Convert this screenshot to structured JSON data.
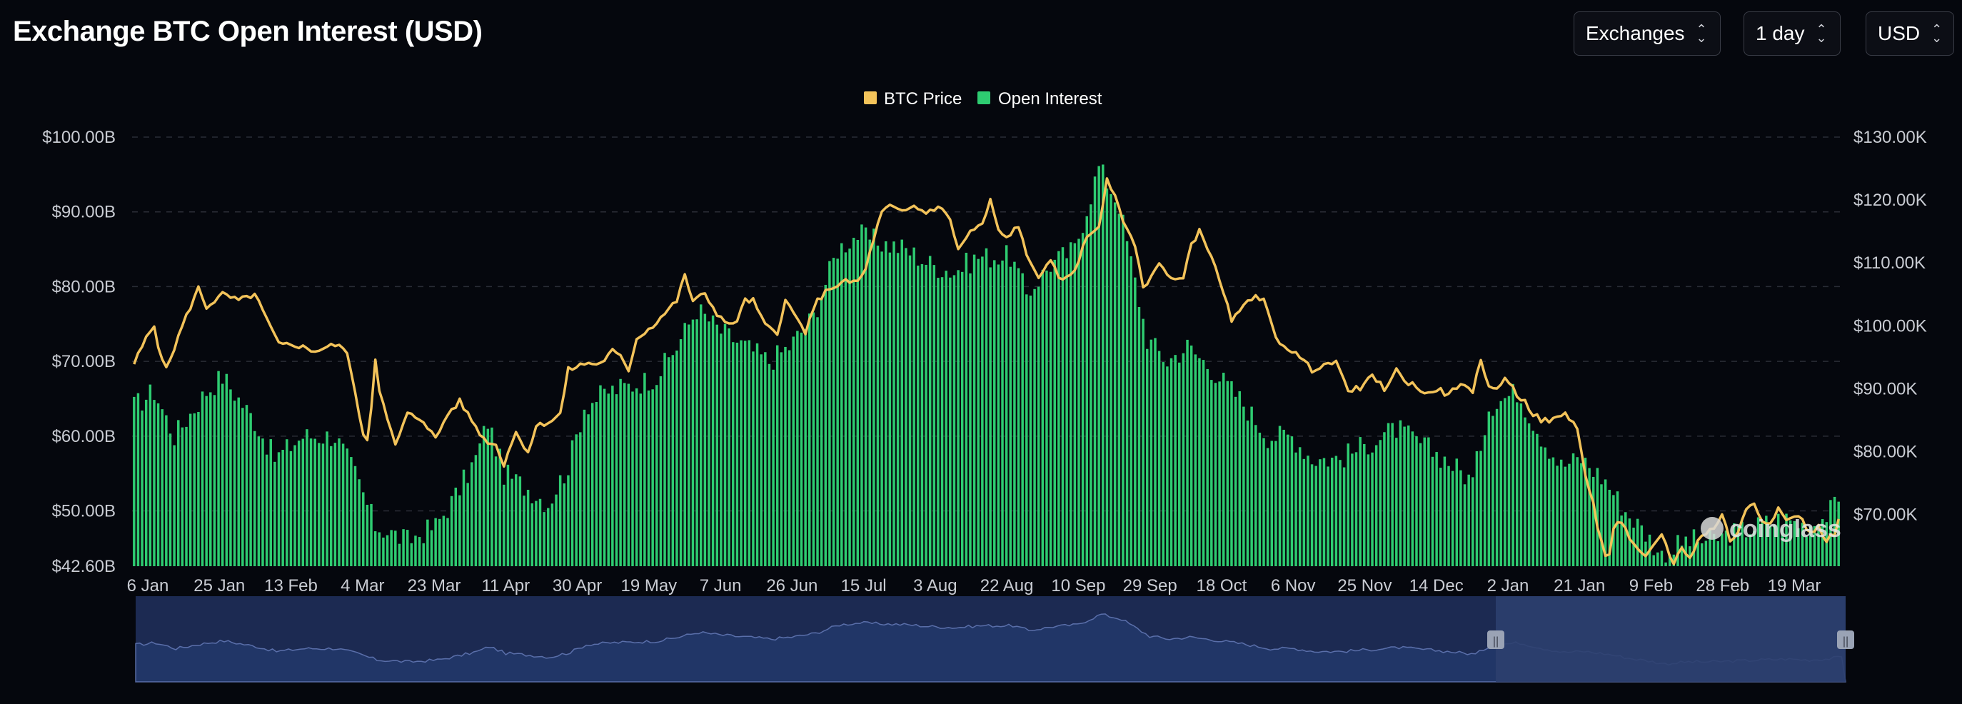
{
  "title": "Exchange BTC Open Interest (USD)",
  "controls": {
    "exchange_label": "Exchanges",
    "interval_label": "1 day",
    "currency_label": "USD"
  },
  "colors": {
    "price": "#f3c35a",
    "open_interest": "#2ecc71",
    "grid": "#2a2d36",
    "navigator": "#1c2a52",
    "navigator_selected": "#2c3f6e"
  },
  "watermark": "coinglass",
  "chart_data": {
    "type": "bar+line",
    "legend": [
      "BTC Price",
      "Open Interest"
    ],
    "y_left": {
      "ticks": [
        "$100.00B",
        "$90.00B",
        "$80.00B",
        "$70.00B",
        "$60.00B",
        "$50.00B",
        "$42.60B"
      ],
      "tick_values": [
        100,
        90,
        80,
        70,
        60,
        50,
        42.6
      ],
      "range": [
        42.6,
        100
      ]
    },
    "y_right": {
      "ticks": [
        "$130.00K",
        "$120.00K",
        "$110.00K",
        "$100.00K",
        "$90.00K",
        "$80.00K",
        "$70.00K"
      ],
      "tick_values": [
        130,
        120,
        110,
        100,
        90,
        80,
        70
      ],
      "range": [
        61.8,
        130
      ]
    },
    "x_labels": [
      "6 Jan",
      "25 Jan",
      "13 Feb",
      "4 Mar",
      "23 Mar",
      "11 Apr",
      "30 Apr",
      "19 May",
      "7 Jun",
      "26 Jun",
      "15 Jul",
      "3 Aug",
      "22 Aug",
      "10 Sep",
      "29 Sep",
      "18 Oct",
      "6 Nov",
      "25 Nov",
      "14 Dec",
      "2 Jan",
      "21 Jan",
      "9 Feb",
      "28 Feb",
      "19 Mar"
    ],
    "series": [
      {
        "name": "Open Interest",
        "unit": "USD billions",
        "anchors": [
          [
            0,
            64
          ],
          [
            5,
            66
          ],
          [
            10,
            60
          ],
          [
            18,
            66
          ],
          [
            22,
            68
          ],
          [
            30,
            62
          ],
          [
            35,
            57
          ],
          [
            42,
            60
          ],
          [
            50,
            60
          ],
          [
            55,
            55
          ],
          [
            60,
            48
          ],
          [
            68,
            46
          ],
          [
            75,
            48
          ],
          [
            80,
            52
          ],
          [
            85,
            57
          ],
          [
            88,
            62
          ],
          [
            92,
            55
          ],
          [
            98,
            53
          ],
          [
            103,
            51
          ],
          [
            108,
            56
          ],
          [
            112,
            64
          ],
          [
            118,
            66
          ],
          [
            125,
            67
          ],
          [
            130,
            68
          ],
          [
            135,
            72
          ],
          [
            140,
            77
          ],
          [
            146,
            74
          ],
          [
            152,
            72
          ],
          [
            158,
            70
          ],
          [
            163,
            72
          ],
          [
            169,
            76
          ],
          [
            175,
            85
          ],
          [
            180,
            87
          ],
          [
            185,
            86
          ],
          [
            192,
            85
          ],
          [
            198,
            83
          ],
          [
            204,
            82
          ],
          [
            210,
            84
          ],
          [
            218,
            84
          ],
          [
            222,
            79
          ],
          [
            228,
            83
          ],
          [
            234,
            85
          ],
          [
            240,
            96
          ],
          [
            245,
            91
          ],
          [
            252,
            73
          ],
          [
            257,
            70
          ],
          [
            262,
            72
          ],
          [
            268,
            69
          ],
          [
            275,
            65
          ],
          [
            282,
            60
          ],
          [
            288,
            60
          ],
          [
            293,
            57
          ],
          [
            300,
            57
          ],
          [
            307,
            59
          ],
          [
            314,
            61
          ],
          [
            320,
            59
          ],
          [
            326,
            57
          ],
          [
            333,
            54
          ],
          [
            337,
            64
          ],
          [
            344,
            66
          ],
          [
            350,
            60
          ],
          [
            355,
            56
          ],
          [
            360,
            57
          ],
          [
            366,
            54
          ],
          [
            371,
            50
          ],
          [
            376,
            47
          ],
          [
            380,
            44
          ],
          [
            386,
            46
          ],
          [
            392,
            46
          ],
          [
            398,
            47
          ],
          [
            404,
            48
          ],
          [
            410,
            49
          ],
          [
            416,
            48
          ],
          [
            420,
            49
          ],
          [
            424,
            51
          ]
        ]
      },
      {
        "name": "BTC Price",
        "unit": "USD thousands",
        "anchors": [
          [
            0,
            94
          ],
          [
            3,
            98
          ],
          [
            5,
            100
          ],
          [
            6,
            97
          ],
          [
            8,
            93
          ],
          [
            12,
            100
          ],
          [
            14,
            103
          ],
          [
            16,
            106
          ],
          [
            18,
            103
          ],
          [
            22,
            105
          ],
          [
            26,
            104
          ],
          [
            30,
            105
          ],
          [
            33,
            101
          ],
          [
            36,
            97
          ],
          [
            40,
            97
          ],
          [
            45,
            96
          ],
          [
            50,
            97
          ],
          [
            53,
            96
          ],
          [
            55,
            89
          ],
          [
            57,
            83
          ],
          [
            58,
            82
          ],
          [
            59,
            87
          ],
          [
            60,
            95
          ],
          [
            61,
            90
          ],
          [
            63,
            85
          ],
          [
            65,
            81
          ],
          [
            68,
            86
          ],
          [
            72,
            85
          ],
          [
            75,
            82
          ],
          [
            78,
            86
          ],
          [
            81,
            88
          ],
          [
            84,
            85
          ],
          [
            87,
            82
          ],
          [
            90,
            81
          ],
          [
            92,
            78
          ],
          [
            93,
            80
          ],
          [
            95,
            83
          ],
          [
            98,
            80
          ],
          [
            100,
            84
          ],
          [
            104,
            85
          ],
          [
            106,
            86
          ],
          [
            108,
            93
          ],
          [
            112,
            94
          ],
          [
            116,
            94
          ],
          [
            119,
            96
          ],
          [
            121,
            95
          ],
          [
            123,
            93
          ],
          [
            125,
            98
          ],
          [
            129,
            100
          ],
          [
            132,
            102
          ],
          [
            135,
            104
          ],
          [
            137,
            108
          ],
          [
            139,
            104
          ],
          [
            142,
            105
          ],
          [
            145,
            102
          ],
          [
            148,
            100
          ],
          [
            150,
            101
          ],
          [
            152,
            104
          ],
          [
            154,
            104
          ],
          [
            157,
            100
          ],
          [
            160,
            99
          ],
          [
            162,
            104
          ],
          [
            165,
            101
          ],
          [
            167,
            99
          ],
          [
            170,
            104
          ],
          [
            173,
            106
          ],
          [
            177,
            107
          ],
          [
            180,
            107
          ],
          [
            182,
            109
          ],
          [
            184,
            114
          ],
          [
            186,
            118
          ],
          [
            188,
            119
          ],
          [
            191,
            118
          ],
          [
            194,
            119
          ],
          [
            197,
            118
          ],
          [
            200,
            119
          ],
          [
            203,
            117
          ],
          [
            205,
            112
          ],
          [
            208,
            115
          ],
          [
            211,
            116
          ],
          [
            213,
            120
          ],
          [
            215,
            115
          ],
          [
            217,
            114
          ],
          [
            220,
            116
          ],
          [
            222,
            111
          ],
          [
            225,
            108
          ],
          [
            228,
            110
          ],
          [
            231,
            107
          ],
          [
            234,
            109
          ],
          [
            237,
            114
          ],
          [
            240,
            116
          ],
          [
            242,
            123
          ],
          [
            245,
            119
          ],
          [
            247,
            115
          ],
          [
            249,
            113
          ],
          [
            251,
            106
          ],
          [
            253,
            108
          ],
          [
            255,
            110
          ],
          [
            257,
            108
          ],
          [
            259,
            107
          ],
          [
            261,
            108
          ],
          [
            263,
            113
          ],
          [
            265,
            115
          ],
          [
            266,
            114
          ],
          [
            268,
            111
          ],
          [
            271,
            105
          ],
          [
            273,
            101
          ],
          [
            275,
            102
          ],
          [
            277,
            104
          ],
          [
            279,
            105
          ],
          [
            281,
            104
          ],
          [
            282,
            102
          ],
          [
            284,
            98
          ],
          [
            286,
            97
          ],
          [
            288,
            96
          ],
          [
            290,
            95
          ],
          [
            293,
            93
          ],
          [
            296,
            94
          ],
          [
            299,
            94
          ],
          [
            302,
            90
          ],
          [
            305,
            90
          ],
          [
            308,
            92
          ],
          [
            311,
            90
          ],
          [
            314,
            93
          ],
          [
            316,
            91
          ],
          [
            318,
            91
          ],
          [
            321,
            89
          ],
          [
            324,
            90
          ],
          [
            327,
            89
          ],
          [
            330,
            91
          ],
          [
            333,
            89
          ],
          [
            335,
            95
          ],
          [
            337,
            90
          ],
          [
            339,
            90
          ],
          [
            341,
            92
          ],
          [
            344,
            89
          ],
          [
            346,
            88
          ],
          [
            348,
            86
          ],
          [
            350,
            85
          ],
          [
            353,
            85
          ],
          [
            356,
            86
          ],
          [
            359,
            84
          ],
          [
            361,
            76
          ],
          [
            363,
            72
          ],
          [
            364,
            68
          ],
          [
            366,
            63
          ],
          [
            367,
            64
          ],
          [
            368,
            68
          ],
          [
            370,
            69
          ],
          [
            373,
            65
          ],
          [
            376,
            63
          ],
          [
            378,
            65
          ],
          [
            380,
            67
          ],
          [
            383,
            62
          ],
          [
            385,
            65
          ],
          [
            387,
            63
          ],
          [
            389,
            66
          ],
          [
            391,
            67
          ],
          [
            393,
            68
          ],
          [
            395,
            70
          ],
          [
            397,
            66
          ],
          [
            399,
            67
          ],
          [
            401,
            71
          ],
          [
            403,
            72
          ],
          [
            405,
            69
          ],
          [
            407,
            69
          ],
          [
            409,
            71
          ],
          [
            411,
            69
          ],
          [
            413,
            70
          ],
          [
            415,
            69
          ],
          [
            417,
            67
          ],
          [
            419,
            68
          ],
          [
            421,
            66
          ],
          [
            423,
            67
          ],
          [
            424,
            69
          ]
        ]
      }
    ],
    "navigator": {
      "selection": [
        "2 Jan",
        "19 Mar"
      ]
    }
  }
}
